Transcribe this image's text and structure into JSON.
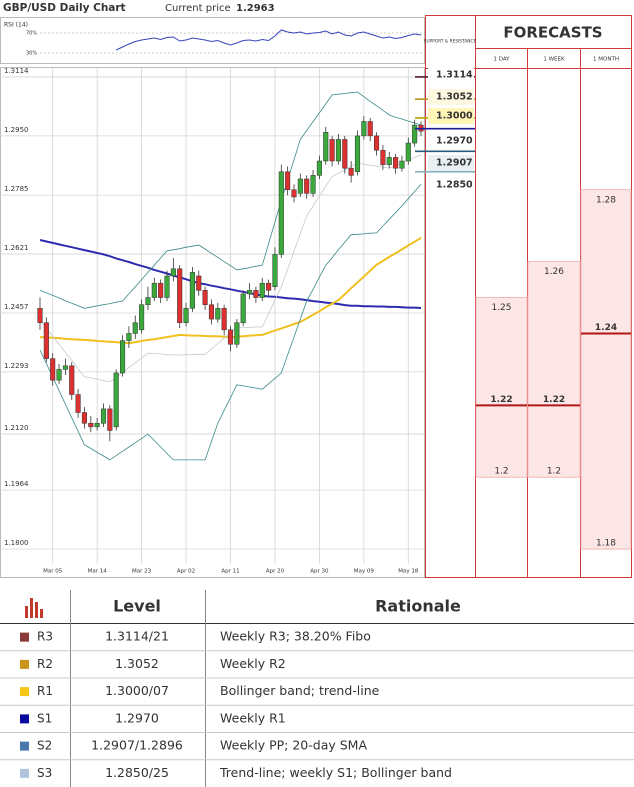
{
  "header": {
    "title": "GBP/USD Daily Chart",
    "price_label": "Current price",
    "price": "1.2963"
  },
  "chart_data": [
    {
      "type": "candlestick",
      "categories": [
        null,
        null,
        "Mar 05",
        null,
        null,
        null,
        null,
        null,
        null,
        "Mar 14",
        null,
        null,
        null,
        null,
        null,
        null,
        "Mar 23",
        null,
        null,
        null,
        null,
        null,
        null,
        "Apr 02",
        null,
        null,
        null,
        null,
        null,
        null,
        "Apr 11",
        null,
        null,
        null,
        null,
        null,
        null,
        "Apr 20",
        null,
        null,
        null,
        null,
        null,
        null,
        "Apr 30",
        null,
        null,
        null,
        null,
        null,
        null,
        "May 09",
        null,
        null,
        null,
        null,
        null,
        null,
        "May 18",
        null,
        null
      ],
      "open": [
        1.247,
        1.243,
        1.233,
        1.227,
        1.23,
        1.231,
        1.223,
        1.218,
        1.215,
        1.214,
        1.215,
        1.219,
        1.214,
        1.229,
        1.238,
        1.24,
        1.241,
        1.248,
        1.25,
        1.254,
        1.25,
        1.256,
        1.258,
        1.243,
        1.247,
        1.256,
        1.252,
        1.248,
        1.244,
        1.247,
        1.241,
        1.237,
        1.243,
        1.251,
        1.252,
        1.25,
        1.254,
        1.253,
        1.262,
        1.285,
        1.28,
        1.279,
        1.283,
        1.279,
        1.284,
        1.288,
        1.294,
        1.288,
        1.294,
        1.286,
        1.285,
        1.295,
        1.299,
        1.295,
        1.291,
        1.287,
        1.289,
        1.286,
        1.288,
        1.293,
        1.298
      ],
      "high": [
        1.25,
        1.2445,
        1.2345,
        1.2315,
        1.233,
        1.232,
        1.2245,
        1.2195,
        1.217,
        1.2165,
        1.2205,
        1.22,
        1.23,
        1.2395,
        1.242,
        1.245,
        1.2495,
        1.253,
        1.2555,
        1.255,
        1.2575,
        1.261,
        1.259,
        1.2485,
        1.2585,
        1.2575,
        1.253,
        1.2495,
        1.2485,
        1.248,
        1.242,
        1.244,
        1.252,
        1.254,
        1.253,
        1.2555,
        1.255,
        1.264,
        1.287,
        1.2865,
        1.2815,
        1.2845,
        1.284,
        1.2855,
        1.2895,
        1.2975,
        1.295,
        1.2955,
        1.295,
        1.288,
        1.2965,
        1.3005,
        1.3,
        1.296,
        1.2925,
        1.2905,
        1.29,
        1.2895,
        1.2945,
        1.2995,
        1.299
      ],
      "low": [
        1.241,
        1.232,
        1.2255,
        1.226,
        1.2285,
        1.2215,
        1.2165,
        1.2135,
        1.2125,
        1.213,
        1.214,
        1.21,
        1.213,
        1.228,
        1.236,
        1.2385,
        1.24,
        1.2465,
        1.249,
        1.2485,
        1.249,
        1.2545,
        1.2415,
        1.242,
        1.246,
        1.2505,
        1.2465,
        1.2425,
        1.243,
        1.2395,
        1.235,
        1.236,
        1.242,
        1.2495,
        1.2485,
        1.249,
        1.2505,
        1.252,
        1.261,
        1.2785,
        1.2765,
        1.278,
        1.2775,
        1.278,
        1.283,
        1.287,
        1.2865,
        1.287,
        1.2845,
        1.282,
        1.284,
        1.294,
        1.2935,
        1.2895,
        1.2855,
        1.286,
        1.2845,
        1.285,
        1.287,
        1.292,
        1.295
      ],
      "close": [
        1.243,
        1.233,
        1.227,
        1.23,
        1.231,
        1.223,
        1.218,
        1.215,
        1.214,
        1.215,
        1.219,
        1.213,
        1.229,
        1.238,
        1.24,
        1.243,
        1.248,
        1.25,
        1.254,
        1.25,
        1.256,
        1.258,
        1.243,
        1.247,
        1.257,
        1.252,
        1.248,
        1.244,
        1.247,
        1.241,
        1.237,
        1.243,
        1.251,
        1.252,
        1.25,
        1.254,
        1.252,
        1.262,
        1.285,
        1.28,
        1.278,
        1.283,
        1.279,
        1.284,
        1.288,
        1.296,
        1.288,
        1.294,
        1.286,
        1.284,
        1.295,
        1.299,
        1.295,
        1.291,
        1.287,
        1.289,
        1.286,
        1.288,
        1.293,
        1.298,
        1.2963
      ],
      "up_color": "#3aa83a",
      "down_color": "#dd3030",
      "series": [
        {
          "color": "#2c2cb0",
          "values": [
            1.266,
            1.2656,
            1.2652,
            1.2648,
            1.2644,
            1.264,
            1.2636,
            1.2632,
            1.2628,
            1.2624,
            1.262,
            1.2615,
            1.2609,
            1.2604,
            1.2599,
            1.2593,
            1.2588,
            1.2583,
            1.2577,
            1.2572,
            1.2567,
            1.2561,
            1.2556,
            1.2551,
            1.2545,
            1.254,
            1.2537,
            1.2533,
            1.253,
            1.2526,
            1.2523,
            1.2519,
            1.2516,
            1.2512,
            1.2509,
            1.2505,
            1.2503,
            1.2502,
            1.25,
            1.2498,
            1.2497,
            1.2495,
            1.2493,
            1.249,
            1.2488,
            1.2486,
            1.2484,
            1.2482,
            1.2479,
            1.2477,
            1.2477,
            1.2476,
            1.2476,
            1.2475,
            1.2475,
            1.2474,
            1.2474,
            1.2473,
            1.2472,
            1.2472,
            1.2471
          ]
        },
        {
          "color": "#f0c020",
          "values": [
            1.239,
            1.2389,
            1.2388,
            1.2387,
            1.2385,
            1.2384,
            1.2383,
            1.2382,
            1.2381,
            1.2379,
            1.2378,
            1.2377,
            1.2376,
            1.2374,
            1.2373,
            1.2376,
            1.2379,
            1.2382,
            1.2384,
            1.2387,
            1.239,
            1.2393,
            1.2396,
            1.2395,
            1.2394,
            1.2394,
            1.2393,
            1.2392,
            1.2392,
            1.2391,
            1.239,
            1.2391,
            1.2392,
            1.2394,
            1.2395,
            1.2396,
            1.2402,
            1.2408,
            1.2414,
            1.242,
            1.2426,
            1.2432,
            1.2442,
            1.2452,
            1.2462,
            1.2473,
            1.2483,
            1.2493,
            1.2509,
            1.2526,
            1.2542,
            1.2558,
            1.2575,
            1.2591,
            1.2602,
            1.2613,
            1.2623,
            1.2634,
            1.2645,
            1.2655,
            1.2666
          ]
        },
        {
          "color": "#3a8a8a",
          "values": [
            1.252,
            1.2513,
            1.2506,
            1.2499,
            1.2491,
            1.2484,
            1.2477,
            1.247,
            1.2473,
            1.2477,
            1.248,
            1.2483,
            1.2487,
            1.249,
            1.251,
            1.253,
            1.255,
            1.257,
            1.259,
            1.261,
            1.263,
            1.2633,
            1.2636,
            1.264,
            1.2643,
            1.2646,
            1.2635,
            1.2623,
            1.2612,
            1.26,
            1.2589,
            1.2577,
            1.258,
            1.2583,
            1.2587,
            1.259,
            1.265,
            1.271,
            1.277,
            1.2827,
            1.2883,
            1.294,
            1.2965,
            1.299,
            1.3014,
            1.3039,
            1.3064,
            1.3066,
            1.3068,
            1.307,
            1.3072,
            1.3059,
            1.3046,
            1.3034,
            1.3021,
            1.3008,
            1.3002,
            1.2997,
            1.2991,
            1.2986,
            1.298
          ]
        },
        {
          "color": "#3a8a8a",
          "values": [
            1.2354,
            1.2316,
            1.2279,
            1.2241,
            1.2203,
            1.2165,
            1.2128,
            1.209,
            1.208,
            1.2069,
            1.2059,
            1.2048,
            1.206,
            1.2072,
            1.2084,
            1.2096,
            1.2108,
            1.212,
            1.2102,
            1.2084,
            1.2066,
            1.2048,
            1.2048,
            1.2048,
            1.2048,
            1.2048,
            1.2048,
            1.2099,
            1.215,
            1.2186,
            1.2221,
            1.2257,
            1.2254,
            1.2251,
            1.2248,
            1.2245,
            1.226,
            1.2275,
            1.229,
            1.234,
            1.239,
            1.244,
            1.249,
            1.2523,
            1.2557,
            1.259,
            1.2611,
            1.2633,
            1.2654,
            1.2675,
            1.2676,
            1.2677,
            1.2679,
            1.268,
            1.2699,
            1.2718,
            1.2736,
            1.2755,
            1.2775,
            1.2795,
            1.2815
          ]
        },
        {
          "color": "#c8c8c8",
          "values": [
            1.2437,
            1.2415,
            1.2392,
            1.237,
            1.2347,
            1.2325,
            1.2302,
            1.228,
            1.2276,
            1.2273,
            1.2269,
            1.2265,
            1.2278,
            1.2292,
            1.2305,
            1.2318,
            1.2332,
            1.2345,
            1.2344,
            1.2343,
            1.2341,
            1.234,
            1.234,
            1.2341,
            1.2341,
            1.2342,
            1.2342,
            1.2357,
            1.2372,
            1.2387,
            1.2402,
            1.2417,
            1.2417,
            1.2417,
            1.2418,
            1.2418,
            1.2455,
            1.2493,
            1.253,
            1.2579,
            1.2629,
            1.2678,
            1.2727,
            1.2755,
            1.2782,
            1.281,
            1.2837,
            1.2846,
            1.2856,
            1.2865,
            1.2874,
            1.2871,
            1.2868,
            1.2866,
            1.2863,
            1.286,
            1.2867,
            1.2875,
            1.2882,
            1.289,
            1.2897
          ]
        }
      ],
      "ylim": [
        1.175,
        1.315
      ],
      "yticks": [
        1.3114,
        {
          "value": 1.295,
          "label": "1.2950"
        },
        1.2785,
        1.2621,
        1.2457,
        1.2293,
        {
          "value": 1.212,
          "label": "1.2120"
        },
        1.1964,
        {
          "value": 1.18,
          "label": "1.1800"
        }
      ],
      "grid": true,
      "levels": [
        {
          "value": 1.3114,
          "label": "1.3114",
          "color": "#5a1a2a",
          "background": "#ffffff"
        },
        {
          "value": 1.3052,
          "label": "1.3052",
          "color": "#c09020",
          "background": "#fff8e0"
        },
        {
          "value": 1.3,
          "label": "1.3000",
          "color": "#c0a000",
          "background": "#fff6b8"
        },
        {
          "value": 1.297,
          "label": "1.2970",
          "color": "#1a1a9a",
          "background": "#ffffff"
        },
        {
          "value": 1.2907,
          "label": "1.2907",
          "color": "#2a5a7a",
          "background": "#e8f0f4"
        },
        {
          "value": 1.285,
          "label": "1.2850",
          "color": "#8ab0c0",
          "background": "#ffffff"
        }
      ]
    },
    {
      "type": "line",
      "title": "RSI (14)",
      "ylim": [
        0,
        100
      ],
      "yticks": [
        {
          "value": 70,
          "label": "70%"
        },
        {
          "value": 30,
          "label": "30%"
        }
      ],
      "series": [
        {
          "color": "#3344bb",
          "values": [
            null,
            null,
            null,
            null,
            null,
            null,
            null,
            null,
            null,
            null,
            null,
            null,
            36,
            42,
            48,
            53,
            56,
            58,
            60,
            57,
            61,
            62,
            54,
            56,
            60,
            58,
            56,
            53,
            55,
            50,
            46,
            50,
            55,
            56,
            54,
            57,
            55,
            64,
            76,
            72,
            70,
            72,
            68,
            70,
            71,
            74,
            68,
            72,
            66,
            64,
            70,
            72,
            68,
            64,
            60,
            62,
            59,
            61,
            65,
            68,
            66
          ]
        }
      ]
    }
  ],
  "forecasts": {
    "title": "FORECASTS",
    "sr_label": "SUPPORT & RESISTANCE",
    "horizons": [
      {
        "label": "1 DAY",
        "low": 1.2,
        "high": 1.25,
        "median": 1.22
      },
      {
        "label": "1 WEEK",
        "low": 1.2,
        "high": 1.26,
        "median": 1.22
      },
      {
        "label": "1 MONTH",
        "low": 1.18,
        "high": 1.28,
        "median": 1.24
      }
    ]
  },
  "table": {
    "headers": [
      "Level",
      "Rationale"
    ],
    "rows": [
      {
        "name": "R3",
        "level": "1.3114/21",
        "rationale": "Weekly R3; 38.20% Fibo",
        "color": "#8b3a3a"
      },
      {
        "name": "R2",
        "level": "1.3052",
        "rationale": "Weekly R2",
        "color": "#c8941c"
      },
      {
        "name": "R1",
        "level": "1.3000/07",
        "rationale": "Bollinger band; trend-line",
        "color": "#f5c518"
      },
      {
        "name": "S1",
        "level": "1.2970",
        "rationale": "Weekly R1",
        "color": "#0a0aa0"
      },
      {
        "name": "S2",
        "level": "1.2907/1.2896",
        "rationale": "Weekly PP; 20-day SMA",
        "color": "#4a77b0"
      },
      {
        "name": "S3",
        "level": "1.2850/25",
        "rationale": "Trend-line; weekly S1; Bollinger band",
        "color": "#b0c4de"
      }
    ]
  }
}
